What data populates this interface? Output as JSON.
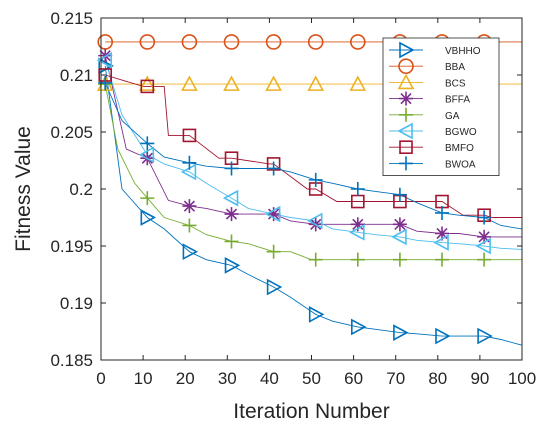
{
  "chart_data": {
    "type": "line",
    "title": "",
    "xlabel": "Iteration Number",
    "ylabel": "Fitness Value",
    "xlim": [
      0,
      100
    ],
    "ylim": [
      0.185,
      0.215
    ],
    "xticks": [
      "0",
      "10",
      "20",
      "30",
      "40",
      "50",
      "60",
      "70",
      "80",
      "90",
      "100"
    ],
    "yticks": [
      "0.185",
      "0.19",
      "0.195",
      "0.2",
      "0.205",
      "0.21",
      "0.215"
    ],
    "grid": false,
    "legend_position": "top-right",
    "series": [
      {
        "name": "VBHHO",
        "color": "#0072BD",
        "marker": "triangle-right",
        "x": [
          1,
          5,
          11,
          15,
          21,
          25,
          31,
          35,
          41,
          45,
          51,
          55,
          61,
          65,
          71,
          75,
          81,
          85,
          91,
          95,
          100
        ],
        "y": [
          0.2108,
          0.2,
          0.1975,
          0.1965,
          0.1945,
          0.1938,
          0.1933,
          0.1925,
          0.1914,
          0.1905,
          0.189,
          0.1884,
          0.1879,
          0.1877,
          0.1874,
          0.1873,
          0.1871,
          0.1871,
          0.1871,
          0.1868,
          0.1863
        ]
      },
      {
        "name": "BBA",
        "color": "#D95319",
        "marker": "circle",
        "x": [
          1,
          100
        ],
        "y": [
          0.2129,
          0.2129
        ]
      },
      {
        "name": "BCS",
        "color": "#EDB120",
        "marker": "triangle-up",
        "x": [
          1,
          100
        ],
        "y": [
          0.2092,
          0.2092
        ]
      },
      {
        "name": "BFFA",
        "color": "#7E2F8E",
        "marker": "asterisk",
        "x": [
          1,
          3,
          6,
          11,
          16,
          21,
          25,
          31,
          35,
          41,
          45,
          51,
          55,
          61,
          65,
          71,
          75,
          81,
          85,
          91,
          95,
          100
        ],
        "y": [
          0.2117,
          0.2085,
          0.2035,
          0.2027,
          0.199,
          0.1985,
          0.1983,
          0.1978,
          0.1978,
          0.1978,
          0.1972,
          0.1969,
          0.1969,
          0.1969,
          0.1969,
          0.1969,
          0.1963,
          0.1961,
          0.1961,
          0.1958,
          0.1958,
          0.1958
        ]
      },
      {
        "name": "GA",
        "color": "#77AC30",
        "marker": "plus",
        "x": [
          1,
          4,
          8,
          11,
          15,
          21,
          25,
          31,
          35,
          41,
          45,
          50,
          51,
          61,
          71,
          81,
          91,
          100
        ],
        "y": [
          0.2092,
          0.2035,
          0.2005,
          0.1992,
          0.1975,
          0.1968,
          0.196,
          0.1954,
          0.1952,
          0.1945,
          0.1945,
          0.1938,
          0.1938,
          0.1938,
          0.1938,
          0.1938,
          0.1938,
          0.1938
        ]
      },
      {
        "name": "BGWO",
        "color": "#4DBEEE",
        "marker": "triangle-left",
        "x": [
          1,
          5,
          11,
          15,
          21,
          25,
          31,
          35,
          41,
          45,
          51,
          55,
          61,
          65,
          71,
          75,
          81,
          85,
          91,
          95,
          100
        ],
        "y": [
          0.2113,
          0.2065,
          0.203,
          0.2022,
          0.2015,
          0.2005,
          0.1992,
          0.1983,
          0.1978,
          0.1975,
          0.1972,
          0.1965,
          0.1962,
          0.196,
          0.1958,
          0.1955,
          0.1953,
          0.1952,
          0.195,
          0.1948,
          0.1947
        ]
      },
      {
        "name": "BMFO",
        "color": "#A2142F",
        "marker": "square",
        "x": [
          1,
          10,
          11,
          15,
          16,
          21,
          28,
          31,
          40,
          41,
          49,
          51,
          56,
          61,
          80,
          81,
          86,
          91,
          93,
          100
        ],
        "y": [
          0.21,
          0.209,
          0.209,
          0.209,
          0.2047,
          0.2047,
          0.2027,
          0.2027,
          0.2022,
          0.2022,
          0.2,
          0.2,
          0.1989,
          0.1989,
          0.1989,
          0.1989,
          0.1977,
          0.1977,
          0.1975,
          0.1975
        ]
      },
      {
        "name": "BWOA",
        "color": "#0072BD",
        "marker": "plus",
        "x": [
          1,
          5,
          11,
          15,
          21,
          25,
          31,
          35,
          41,
          45,
          51,
          55,
          61,
          65,
          71,
          75,
          81,
          85,
          91,
          95,
          100
        ],
        "y": [
          0.2093,
          0.206,
          0.204,
          0.2028,
          0.2023,
          0.202,
          0.2018,
          0.2018,
          0.2018,
          0.2015,
          0.2008,
          0.2005,
          0.2,
          0.1998,
          0.1995,
          0.1988,
          0.1979,
          0.1977,
          0.1975,
          0.1968,
          0.1965
        ]
      }
    ]
  }
}
